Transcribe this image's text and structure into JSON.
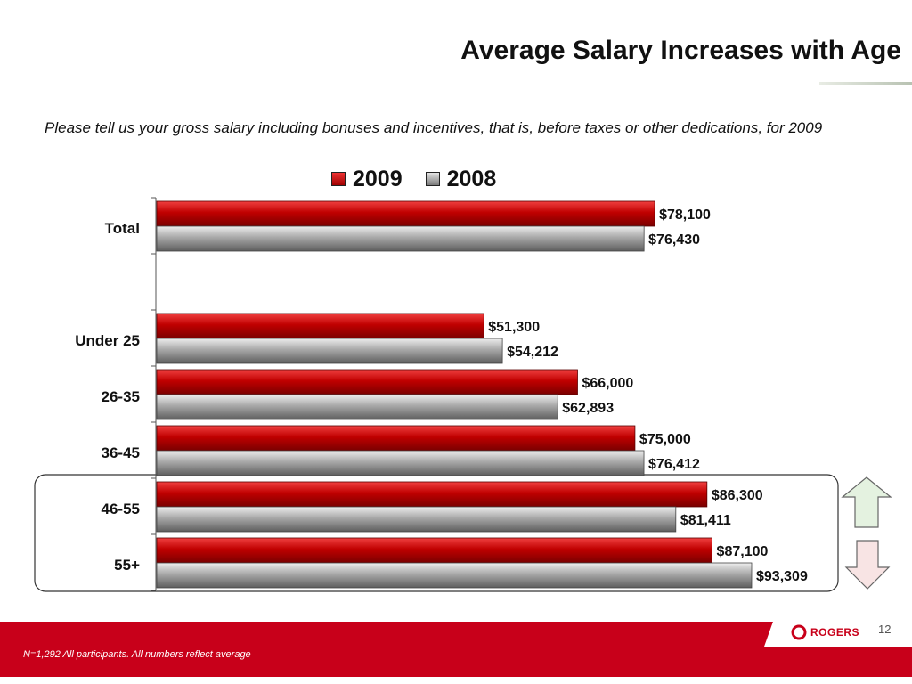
{
  "title": "Average Salary Increases with Age",
  "subtitle": " Please tell us your gross salary including bonuses and incentives, that is, before taxes or other dedications, for 2009",
  "footnote": "N=1,292 All participants. All numbers reflect average",
  "page_number": "12",
  "logo_text": "ROGERS",
  "colors": {
    "series_2009": "#c00000",
    "series_2008": "#9a9a9a",
    "footer": "#c8001a",
    "up_arrow_fill": "#e4f2e0",
    "down_arrow_fill": "#f8e4e4"
  },
  "icons": [
    "up-arrow-icon",
    "down-arrow-icon",
    "rogers-logo-icon"
  ],
  "chart_data": {
    "type": "bar",
    "orientation": "horizontal",
    "categories": [
      "Total",
      "",
      "Under 25",
      "26-35",
      "36-45",
      "46-55",
      "55+"
    ],
    "series": [
      {
        "name": "2009",
        "values": [
          78100,
          null,
          51300,
          66000,
          75000,
          86300,
          87100
        ],
        "labels": [
          "$78,100",
          "",
          "$51,300",
          "$66,000",
          "$75,000",
          "$86,300",
          "$87,100"
        ]
      },
      {
        "name": "2008",
        "values": [
          76430,
          null,
          54212,
          62893,
          76412,
          81411,
          93309
        ],
        "labels": [
          "$76,430",
          "",
          "$54,212",
          "$62,893",
          "$76,412",
          "$81,411",
          "$93,309"
        ]
      }
    ],
    "legend_position": "top",
    "highlighted_categories": [
      "46-55",
      "55+"
    ],
    "xlim": [
      0,
      93309
    ],
    "grid": false
  }
}
